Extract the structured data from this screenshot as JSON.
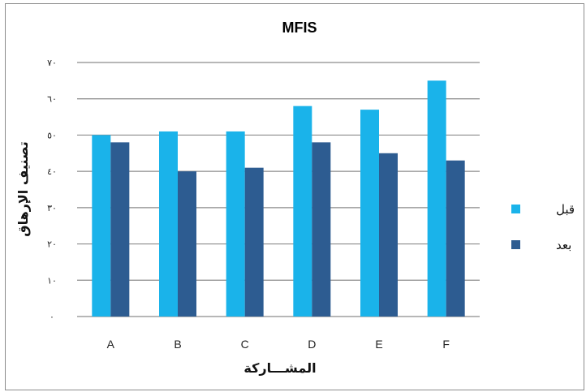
{
  "chart_data": {
    "type": "bar",
    "title": "MFIS",
    "xlabel": "المشـــاركة",
    "ylabel": "تصنيف الإرهاق",
    "categories": [
      "A",
      "B",
      "C",
      "D",
      "E",
      "F"
    ],
    "series": [
      {
        "name": "قبل",
        "color": "#1ab3ea",
        "values": [
          50,
          51,
          51,
          58,
          57,
          65
        ]
      },
      {
        "name": "بعد",
        "color": "#2d5c91",
        "values": [
          48,
          40,
          41,
          48,
          45,
          43
        ]
      }
    ],
    "ylim": [
      0,
      70
    ],
    "yticks": [
      0,
      10,
      20,
      30,
      40,
      50,
      60,
      70
    ],
    "ytick_labels": [
      "٠",
      "١٠",
      "٢٠",
      "٣٠",
      "٤٠",
      "٥٠",
      "٦٠",
      "٧٠"
    ],
    "grid": true,
    "legend_position": "right"
  }
}
